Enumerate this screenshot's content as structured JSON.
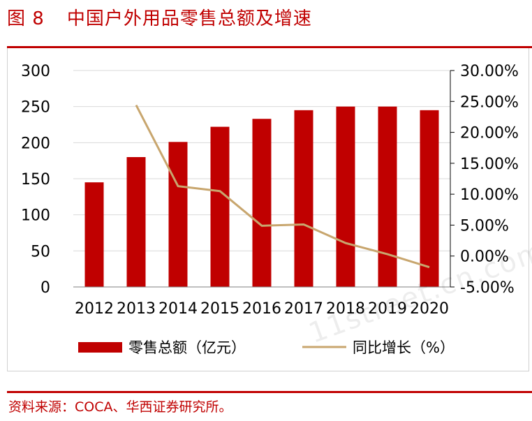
{
  "figure": {
    "label": "图 8",
    "title": "中国户外用品零售总额及增速"
  },
  "source": "资料来源：COCA、华西证券研究所。",
  "watermark": "11street.cn.com",
  "colors": {
    "bar": "#c00000",
    "line": "#c8a66e",
    "rule": "#c00000",
    "text": "#000000"
  },
  "chart_data": {
    "type": "bar",
    "categories": [
      "2012",
      "2013",
      "2014",
      "2015",
      "2016",
      "2017",
      "2018",
      "2019",
      "2020"
    ],
    "series": [
      {
        "name": "零售总额（亿元）",
        "type": "bar",
        "axis": "left",
        "values": [
          145,
          180,
          201,
          222,
          233,
          245,
          250,
          250,
          245
        ]
      },
      {
        "name": "同比增长（%）",
        "type": "line",
        "axis": "right",
        "values": [
          null,
          24.4,
          11.3,
          10.5,
          4.9,
          5.1,
          2.1,
          0.3,
          -1.8
        ]
      }
    ],
    "y_left": {
      "min": 0,
      "max": 300,
      "ticks": [
        "0",
        "50",
        "100",
        "150",
        "200",
        "250",
        "300"
      ]
    },
    "y_right": {
      "min": -5,
      "max": 30,
      "ticks": [
        "-5.00%",
        "0.00%",
        "5.00%",
        "10.00%",
        "15.00%",
        "20.00%",
        "25.00%",
        "30.00%"
      ]
    },
    "grid": true,
    "legend_position": "bottom"
  }
}
